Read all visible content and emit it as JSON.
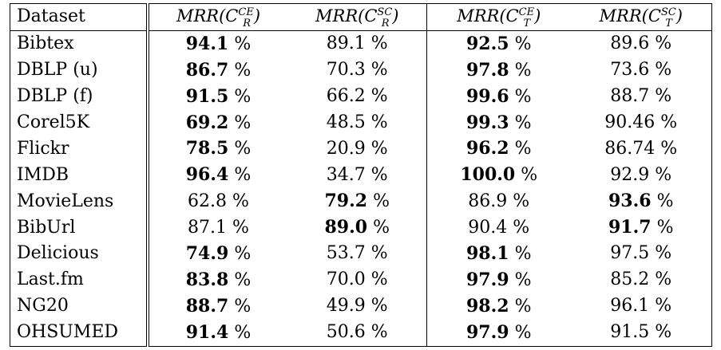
{
  "table": {
    "header": {
      "dataset": "Dataset",
      "cols": [
        {
          "prefix": "MRR(",
          "cal": "C",
          "sup": "CE",
          "sub": "R",
          "suffix": ")"
        },
        {
          "prefix": "MRR(",
          "cal": "C",
          "sup": "SC",
          "sub": "R",
          "suffix": ")"
        },
        {
          "prefix": "MRR(",
          "cal": "C",
          "sup": "CE",
          "sub": "T",
          "suffix": ")"
        },
        {
          "prefix": "MRR(",
          "cal": "C",
          "sup": "SC",
          "sub": "T",
          "suffix": ")"
        }
      ]
    },
    "unit": "%",
    "rows": [
      {
        "name": "Bibtex",
        "vals": [
          "94.1",
          "89.1",
          "92.5",
          "89.6"
        ],
        "bold": [
          true,
          false,
          true,
          false
        ]
      },
      {
        "name": "DBLP (u)",
        "vals": [
          "86.7",
          "70.3",
          "97.8",
          "73.6"
        ],
        "bold": [
          true,
          false,
          true,
          false
        ]
      },
      {
        "name": "DBLP (f)",
        "vals": [
          "91.5",
          "66.2",
          "99.6",
          "88.7"
        ],
        "bold": [
          true,
          false,
          true,
          false
        ]
      },
      {
        "name": "Corel5K",
        "vals": [
          "69.2",
          "48.5",
          "99.3",
          "90.46"
        ],
        "bold": [
          true,
          false,
          true,
          false
        ]
      },
      {
        "name": "Flickr",
        "vals": [
          "78.5",
          "20.9",
          "96.2",
          "86.74"
        ],
        "bold": [
          true,
          false,
          true,
          false
        ]
      },
      {
        "name": "IMDB",
        "vals": [
          "96.4",
          "34.7",
          "100.0",
          "92.9"
        ],
        "bold": [
          true,
          false,
          true,
          false
        ]
      },
      {
        "name": "MovieLens",
        "vals": [
          "62.8",
          "79.2",
          "86.9",
          "93.6"
        ],
        "bold": [
          false,
          true,
          false,
          true
        ]
      },
      {
        "name": "BibUrl",
        "vals": [
          "87.1",
          "89.0",
          "90.4",
          "91.7"
        ],
        "bold": [
          false,
          true,
          false,
          true
        ]
      },
      {
        "name": "Delicious",
        "vals": [
          "74.9",
          "53.7",
          "98.1",
          "97.5"
        ],
        "bold": [
          true,
          false,
          true,
          false
        ]
      },
      {
        "name": "Last.fm",
        "vals": [
          "83.8",
          "70.0",
          "97.9",
          "85.2"
        ],
        "bold": [
          true,
          false,
          true,
          false
        ]
      },
      {
        "name": "NG20",
        "vals": [
          "88.7",
          "49.9",
          "98.2",
          "96.1"
        ],
        "bold": [
          true,
          false,
          true,
          false
        ]
      },
      {
        "name": "OHSUMED",
        "vals": [
          "91.4",
          "50.6",
          "97.9",
          "91.5"
        ],
        "bold": [
          true,
          false,
          true,
          false
        ]
      }
    ]
  }
}
